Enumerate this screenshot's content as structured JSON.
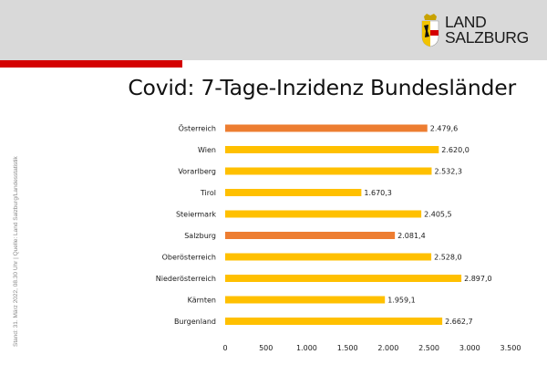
{
  "header": {
    "logo_line1": "LAND",
    "logo_line2": "SALZBURG",
    "title": "Covid: 7-Tage-Inzidenz Bundesländer"
  },
  "source_note": "Stand: 31. März 2022, 08.30 Uhr | Quelle: Land Salzburg/Landesstatistik",
  "colors": {
    "highlight": "#ed7d31",
    "bar": "#ffc000",
    "accent_red": "#d40000",
    "header_gray": "#d9d9d9"
  },
  "chart_data": {
    "type": "bar",
    "orientation": "horizontal",
    "categories": [
      "Österreich",
      "Wien",
      "Vorarlberg",
      "Tirol",
      "Steiermark",
      "Salzburg",
      "Oberösterreich",
      "Niederösterreich",
      "Kärnten",
      "Burgenland"
    ],
    "values": [
      2479.6,
      2620.0,
      2532.3,
      1670.3,
      2405.5,
      2081.4,
      2528.0,
      2897.0,
      1959.1,
      2662.7
    ],
    "value_labels": [
      "2.479,6",
      "2.620,0",
      "2.532,3",
      "1.670,3",
      "2.405,5",
      "2.081,4",
      "2.528,0",
      "2.897,0",
      "1.959,1",
      "2.662,7"
    ],
    "highlighted": [
      "Österreich",
      "Salzburg"
    ],
    "xlim": [
      0,
      3500
    ],
    "xticks": [
      0,
      500,
      1000,
      1500,
      2000,
      2500,
      3000,
      3500
    ],
    "xtick_labels": [
      "0",
      "500",
      "1.000",
      "1.500",
      "2.000",
      "2.500",
      "3.000",
      "3.500"
    ],
    "grid": false,
    "legend": "none"
  }
}
